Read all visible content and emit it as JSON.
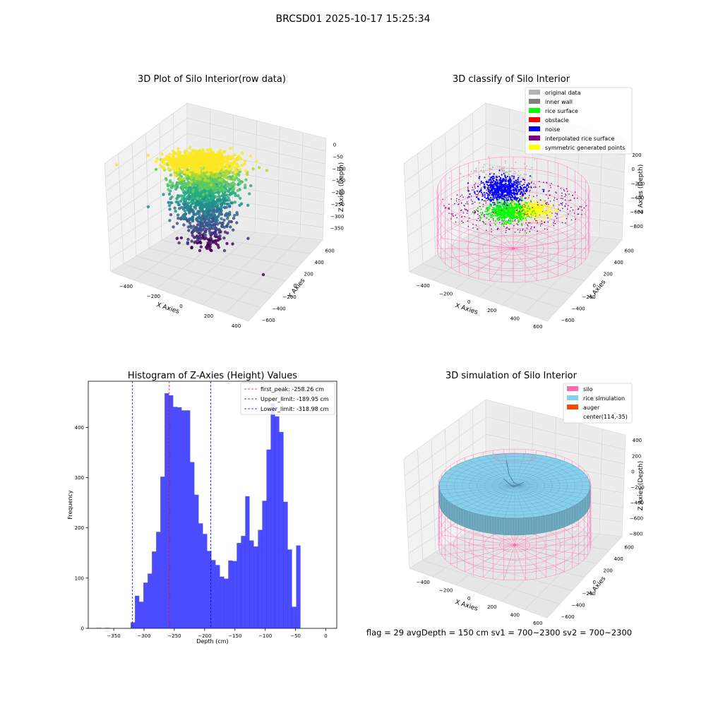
{
  "suptitle": "BRCSD01 2025-10-17 15:25:34",
  "status_line": "flag = 29  avgDepth = 150 cm  sv1 = 700~2300  sv2 = 700~2300",
  "chart_data": [
    {
      "type": "scatter",
      "subtype": "3d",
      "title": "3D Plot of Silo Interior(row data)",
      "xlabel": "X Axies",
      "ylabel": "Y Axies",
      "zlabel": "Z Axies (Depth)",
      "x_ticks": [
        "−400",
        "−200",
        "0",
        "200",
        "400"
      ],
      "y_ticks": [
        "−600",
        "−400",
        "−200",
        "0",
        "200",
        "400",
        "600"
      ],
      "z_ticks": [
        "0",
        "−50",
        "−100",
        "−150",
        "−200",
        "−250",
        "−300",
        "−350"
      ],
      "xlim": [
        -450,
        550
      ],
      "ylim": [
        -650,
        650
      ],
      "zlim": [
        -390,
        10
      ],
      "colormap": "viridis"
    },
    {
      "type": "scatter",
      "subtype": "3d",
      "title": "3D classify of Silo Interior",
      "xlabel": "X Axies",
      "ylabel": "Y Axies",
      "zlabel": "Z Axies (Depth)",
      "x_ticks": [
        "−400",
        "−200",
        "0",
        "200",
        "400",
        "600"
      ],
      "y_ticks": [
        "−600",
        "−400",
        "−200",
        "0",
        "200",
        "400",
        "600"
      ],
      "z_ticks": [
        "200",
        "0",
        "−200",
        "−400",
        "−600",
        "−800"
      ],
      "legend_position": "top-right",
      "legend": [
        {
          "name": "original data",
          "color": "#b3b3b3"
        },
        {
          "name": "inner wall",
          "color": "#808080"
        },
        {
          "name": "rice surface",
          "color": "#00ff00"
        },
        {
          "name": "obstacle",
          "color": "#ff0000"
        },
        {
          "name": "noise",
          "color": "#0000ff"
        },
        {
          "name": "interpolated rice surface",
          "color": "#800080"
        },
        {
          "name": "symmetric generated points",
          "color": "#ffff00"
        }
      ],
      "wireframe_color": "#ff69b4"
    },
    {
      "type": "bar",
      "subtype": "histogram",
      "title": "Histogram of Z-Axies (Height) Values",
      "xlabel": "Depth (cm)",
      "ylabel": "Frequency",
      "xlim": [
        -392,
        18
      ],
      "ylim": [
        0,
        492
      ],
      "x_ticks": [
        -350,
        -300,
        -250,
        -200,
        -150,
        -100,
        -50,
        0
      ],
      "y_ticks": [
        0,
        100,
        200,
        300,
        400
      ],
      "bar_color": "#0000ff",
      "bar_alpha": 0.7,
      "bins": [
        {
          "start": -378,
          "end": -371,
          "value": 1
        },
        {
          "start": -371,
          "end": -364,
          "value": 0
        },
        {
          "start": -364,
          "end": -357,
          "value": 1
        },
        {
          "start": -357,
          "end": -350,
          "value": 0
        },
        {
          "start": -350,
          "end": -343,
          "value": 0
        },
        {
          "start": -343,
          "end": -336,
          "value": 0
        },
        {
          "start": -336,
          "end": -329,
          "value": 0
        },
        {
          "start": -329,
          "end": -322,
          "value": 0
        },
        {
          "start": -322,
          "end": -315,
          "value": 12
        },
        {
          "start": -315,
          "end": -308,
          "value": 65
        },
        {
          "start": -308,
          "end": -301,
          "value": 53
        },
        {
          "start": -301,
          "end": -294,
          "value": 91
        },
        {
          "start": -294,
          "end": -287,
          "value": 109
        },
        {
          "start": -287,
          "end": -280,
          "value": 153
        },
        {
          "start": -280,
          "end": -273,
          "value": 192
        },
        {
          "start": -273,
          "end": -266,
          "value": 302
        },
        {
          "start": -266,
          "end": -259,
          "value": 468
        },
        {
          "start": -259,
          "end": -252,
          "value": 464
        },
        {
          "start": -252,
          "end": -245,
          "value": 441
        },
        {
          "start": -245,
          "end": -238,
          "value": 440
        },
        {
          "start": -238,
          "end": -231,
          "value": 434
        },
        {
          "start": -231,
          "end": -224,
          "value": 434
        },
        {
          "start": -224,
          "end": -217,
          "value": 331
        },
        {
          "start": -217,
          "end": -210,
          "value": 266
        },
        {
          "start": -210,
          "end": -203,
          "value": 209
        },
        {
          "start": -203,
          "end": -196,
          "value": 188
        },
        {
          "start": -196,
          "end": -189,
          "value": 154
        },
        {
          "start": -189,
          "end": -182,
          "value": 136
        },
        {
          "start": -182,
          "end": -175,
          "value": 126
        },
        {
          "start": -175,
          "end": -168,
          "value": 103
        },
        {
          "start": -168,
          "end": -161,
          "value": 99
        },
        {
          "start": -161,
          "end": -154,
          "value": 135
        },
        {
          "start": -154,
          "end": -147,
          "value": 134
        },
        {
          "start": -147,
          "end": -140,
          "value": 170
        },
        {
          "start": -140,
          "end": -133,
          "value": 184
        },
        {
          "start": -133,
          "end": -126,
          "value": 263
        },
        {
          "start": -126,
          "end": -119,
          "value": 175
        },
        {
          "start": -119,
          "end": -112,
          "value": 163
        },
        {
          "start": -112,
          "end": -105,
          "value": 196
        },
        {
          "start": -105,
          "end": -98,
          "value": 254
        },
        {
          "start": -98,
          "end": -91,
          "value": 356
        },
        {
          "start": -91,
          "end": -84,
          "value": 448
        },
        {
          "start": -84,
          "end": -77,
          "value": 422
        },
        {
          "start": -77,
          "end": -70,
          "value": 391
        },
        {
          "start": -70,
          "end": -63,
          "value": 252
        },
        {
          "start": -63,
          "end": -56,
          "value": 157
        },
        {
          "start": -56,
          "end": -49,
          "value": 43
        },
        {
          "start": -49,
          "end": -42,
          "value": 165
        }
      ],
      "vlines": [
        {
          "label": "first_peak: -258.26 cm",
          "value": -258.26,
          "color": "#ff0000"
        },
        {
          "label": "Upper_limit: -189.95 cm",
          "value": -189.95,
          "color": "#0000ff"
        },
        {
          "label": "Lower_limit: -318.98 cm",
          "value": -318.98,
          "color": "#0000ff"
        }
      ],
      "legend_position": "top-right"
    },
    {
      "type": "surface",
      "subtype": "3d",
      "title": "3D simulation of Silo Interior",
      "xlabel": "X Axies",
      "ylabel": "Y Axies",
      "zlabel": "Z Axies (Depth)",
      "x_ticks": [
        "−400",
        "−200",
        "0",
        "200",
        "400",
        "600"
      ],
      "y_ticks": [
        "−600",
        "−400",
        "−200",
        "0",
        "200",
        "400",
        "600"
      ],
      "z_ticks": [
        "400",
        "200",
        "0",
        "−200",
        "−400",
        "−600",
        "−800"
      ],
      "legend_position": "top-right",
      "legend": [
        {
          "name": "silo",
          "color": "#ff69b4"
        },
        {
          "name": "rice simulation",
          "color": "#87ceeb"
        },
        {
          "name": "auger",
          "color": "#ff4500"
        },
        {
          "name": "center(114,-35)",
          "color": ""
        }
      ]
    }
  ]
}
